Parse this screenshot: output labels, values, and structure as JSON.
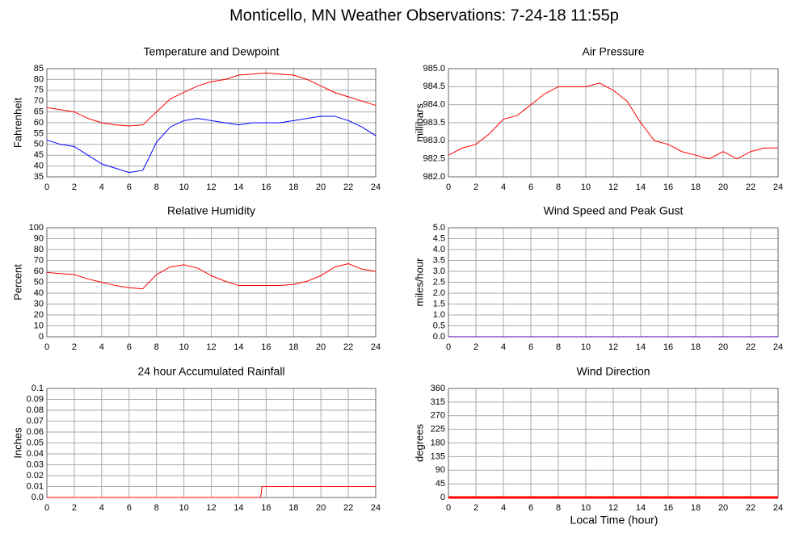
{
  "title": "Monticello, MN Weather Observations: 7-24-18 11:55p",
  "x_label": "Local Time (hour)",
  "chart_data": [
    {
      "type": "line",
      "title": "Temperature and Dewpoint",
      "y_label": "Fahrenheit",
      "grid": true,
      "xlim": [
        0,
        24
      ],
      "xticks": [
        0,
        2,
        4,
        6,
        8,
        10,
        12,
        14,
        16,
        18,
        20,
        22,
        24
      ],
      "ylim": [
        35,
        85
      ],
      "yticks": [
        35,
        40,
        45,
        50,
        55,
        60,
        65,
        70,
        75,
        80,
        85
      ],
      "x": [
        0,
        1,
        2,
        3,
        4,
        5,
        6,
        7,
        8,
        9,
        10,
        11,
        12,
        13,
        14,
        15,
        16,
        17,
        18,
        19,
        20,
        21,
        22,
        23,
        24
      ],
      "series": [
        {
          "color": "#ff0000",
          "values": [
            67,
            66,
            65,
            62,
            60,
            59,
            58.5,
            59,
            65,
            71,
            74,
            77,
            79,
            80,
            82,
            82.5,
            83,
            82.5,
            82,
            80,
            77,
            74,
            72,
            70,
            68
          ]
        },
        {
          "color": "#0000ff",
          "values": [
            52,
            50,
            49,
            45,
            41,
            39,
            37,
            38,
            51,
            58,
            61,
            62,
            61,
            60,
            59,
            60,
            60,
            60,
            61,
            62,
            63,
            63,
            61,
            58,
            54
          ]
        }
      ]
    },
    {
      "type": "line",
      "title": "Air Pressure",
      "y_label": "millibars",
      "grid": true,
      "xlim": [
        0,
        24
      ],
      "xticks": [
        0,
        2,
        4,
        6,
        8,
        10,
        12,
        14,
        16,
        18,
        20,
        22,
        24
      ],
      "ylim": [
        982,
        985
      ],
      "yticks": [
        {
          "value": 982,
          "label": "982.0"
        },
        {
          "value": 982.5,
          "label": "982.5"
        },
        {
          "value": 983,
          "label": "983.0"
        },
        {
          "value": 983.5,
          "label": "983.5"
        },
        {
          "value": 984,
          "label": "984.0"
        },
        {
          "value": 984.5,
          "label": "984.5"
        },
        {
          "value": 985,
          "label": "985.0"
        }
      ],
      "x": [
        0,
        1,
        2,
        3,
        4,
        5,
        6,
        7,
        8,
        9,
        10,
        11,
        12,
        13,
        14,
        15,
        16,
        17,
        18,
        19,
        20,
        21,
        22,
        23,
        24
      ],
      "color": "#ff0000",
      "values": [
        982.6,
        982.8,
        982.9,
        983.2,
        983.6,
        983.7,
        984.0,
        984.3,
        984.5,
        984.5,
        984.5,
        984.6,
        984.4,
        984.1,
        983.5,
        983.0,
        982.9,
        982.7,
        982.6,
        982.5,
        982.7,
        982.5,
        982.7,
        982.8,
        982.8
      ]
    },
    {
      "type": "line",
      "title": "Relative Humidity",
      "y_label": "Percent",
      "grid": true,
      "xlim": [
        0,
        24
      ],
      "xticks": [
        0,
        2,
        4,
        6,
        8,
        10,
        12,
        14,
        16,
        18,
        20,
        22,
        24
      ],
      "ylim": [
        0,
        100
      ],
      "yticks": [
        0,
        10,
        20,
        30,
        40,
        50,
        60,
        70,
        80,
        90,
        100
      ],
      "x": [
        0,
        1,
        2,
        3,
        4,
        5,
        6,
        7,
        8,
        9,
        10,
        11,
        12,
        13,
        14,
        15,
        16,
        17,
        18,
        19,
        20,
        21,
        22,
        23,
        24
      ],
      "color": "#ff0000",
      "values": [
        59,
        58,
        57,
        53,
        50,
        47,
        45,
        44,
        57,
        64,
        66,
        63,
        56,
        51,
        47,
        47,
        47,
        47,
        48,
        51,
        56,
        64,
        67,
        62,
        60
      ]
    },
    {
      "type": "line",
      "title": "Wind Speed and Peak Gust",
      "y_label": "miles/hour",
      "grid": true,
      "xlim": [
        0,
        24
      ],
      "xticks": [
        0,
        2,
        4,
        6,
        8,
        10,
        12,
        14,
        16,
        18,
        20,
        22,
        24
      ],
      "ylim": [
        0,
        5
      ],
      "yticks": [
        {
          "value": 0,
          "label": "0.0"
        },
        0.5,
        {
          "value": 1,
          "label": "1.0"
        },
        1.5,
        {
          "value": 2,
          "label": "2.0"
        },
        2.5,
        {
          "value": 3,
          "label": "3.0"
        },
        3.5,
        {
          "value": 4,
          "label": "4.0"
        },
        4.5,
        {
          "value": 5,
          "label": "5.0"
        }
      ],
      "x": [
        0,
        24
      ],
      "color": "#5500aa",
      "values": [
        0,
        0
      ]
    },
    {
      "type": "line",
      "title": "24 hour Accumulated Rainfall",
      "y_label": "Inches",
      "grid": true,
      "xlim": [
        0,
        24
      ],
      "xticks": [
        0,
        2,
        4,
        6,
        8,
        10,
        12,
        14,
        16,
        18,
        20,
        22,
        24
      ],
      "ylim": [
        0,
        0.1
      ],
      "yticks": [
        {
          "value": 0,
          "label": "0.0"
        },
        0.01,
        0.02,
        0.03,
        0.04,
        0.05,
        0.06,
        0.07,
        0.08,
        0.09,
        0.1
      ],
      "x": [
        0,
        15.6,
        15.7,
        24
      ],
      "color": "#ff0000",
      "values": [
        0,
        0,
        0.01,
        0.01
      ]
    },
    {
      "type": "line",
      "title": "Wind Direction",
      "y_label": "degrees",
      "grid": true,
      "xlim": [
        0,
        24
      ],
      "xticks": [
        0,
        2,
        4,
        6,
        8,
        10,
        12,
        14,
        16,
        18,
        20,
        22,
        24
      ],
      "ylim": [
        0,
        360
      ],
      "yticks": [
        0,
        45,
        90,
        135,
        180,
        225,
        270,
        315,
        360
      ],
      "x": [
        0,
        24
      ],
      "color": "#ff0000",
      "values": [
        0,
        0
      ]
    }
  ]
}
